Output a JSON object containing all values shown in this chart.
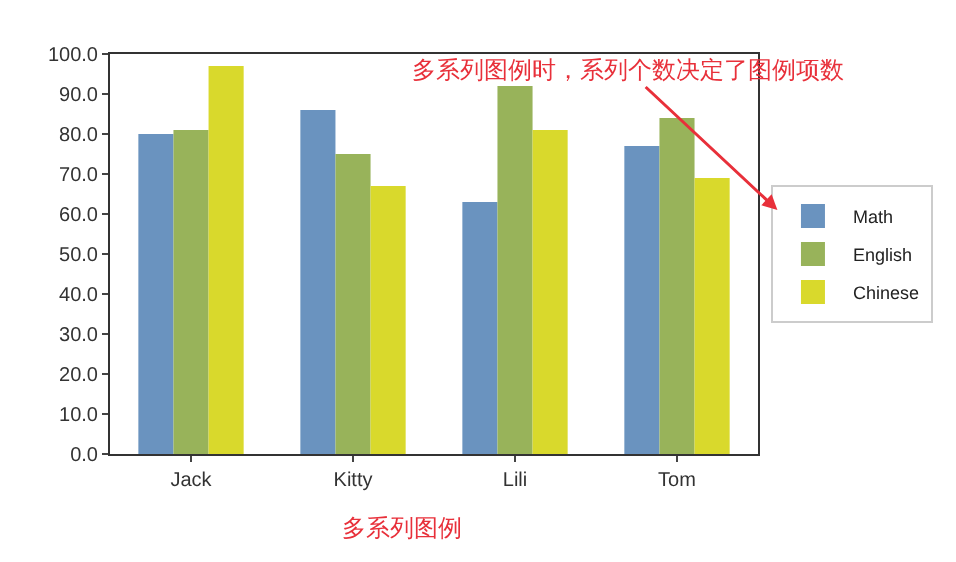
{
  "chart_data": {
    "type": "bar",
    "categories": [
      "Jack",
      "Kitty",
      "Lili",
      "Tom"
    ],
    "series": [
      {
        "name": "Math",
        "color": "#6a93bf",
        "values": [
          80,
          86,
          63,
          77
        ]
      },
      {
        "name": "English",
        "color": "#98b35a",
        "values": [
          81,
          75,
          92,
          84
        ]
      },
      {
        "name": "Chinese",
        "color": "#d9d92c",
        "values": [
          97,
          67,
          81,
          69
        ]
      }
    ],
    "ylim": [
      0,
      100
    ],
    "yticks": [
      {
        "value": 0,
        "label": "0.0"
      },
      {
        "value": 10,
        "label": "10.0"
      },
      {
        "value": 20,
        "label": "20.0"
      },
      {
        "value": 30,
        "label": "30.0"
      },
      {
        "value": 40,
        "label": "40.0"
      },
      {
        "value": 50,
        "label": "50.0"
      },
      {
        "value": 60,
        "label": "60.0"
      },
      {
        "value": 70,
        "label": "70.0"
      },
      {
        "value": 80,
        "label": "80.0"
      },
      {
        "value": 90,
        "label": "90.0"
      },
      {
        "value": 100,
        "label": "100.0"
      }
    ],
    "legend": "right",
    "annotations": [
      "多系列图例时，系列个数决定了图例项数",
      "多系列图例"
    ]
  }
}
